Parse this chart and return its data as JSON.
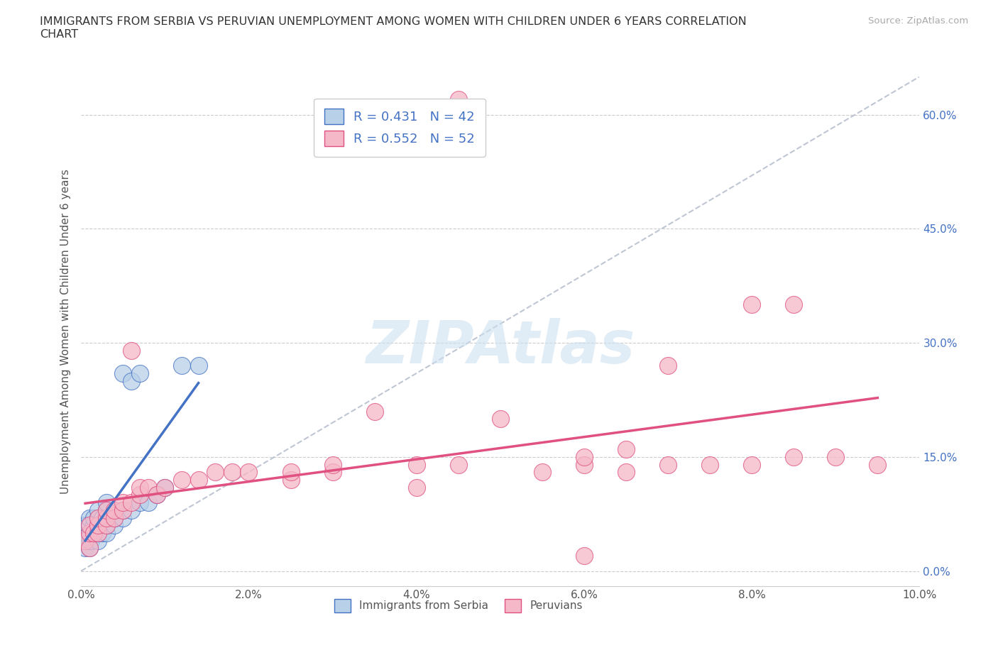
{
  "title": "IMMIGRANTS FROM SERBIA VS PERUVIAN UNEMPLOYMENT AMONG WOMEN WITH CHILDREN UNDER 6 YEARS CORRELATION\nCHART",
  "source": "Source: ZipAtlas.com",
  "xlabel": "",
  "ylabel": "Unemployment Among Women with Children Under 6 years",
  "legend_bottom": [
    "Immigrants from Serbia",
    "Peruvians"
  ],
  "r1": 0.431,
  "n1": 42,
  "r2": 0.552,
  "n2": 52,
  "color_blue": "#b8d0e8",
  "color_pink": "#f5b8c8",
  "color_blue_dark": "#4472c4",
  "color_pink_dark": "#e05080",
  "xlim": [
    0.0,
    0.1
  ],
  "ylim": [
    -0.02,
    0.65
  ],
  "xticks": [
    0.0,
    0.02,
    0.04,
    0.06,
    0.08,
    0.1
  ],
  "yticks": [
    0.0,
    0.15,
    0.3,
    0.45,
    0.6
  ],
  "serbia_x": [
    0.0005,
    0.0005,
    0.0005,
    0.0008,
    0.0008,
    0.001,
    0.001,
    0.001,
    0.001,
    0.001,
    0.0012,
    0.0012,
    0.0015,
    0.0015,
    0.0015,
    0.002,
    0.002,
    0.002,
    0.002,
    0.002,
    0.0025,
    0.0025,
    0.003,
    0.003,
    0.003,
    0.003,
    0.003,
    0.004,
    0.004,
    0.004,
    0.005,
    0.005,
    0.005,
    0.006,
    0.006,
    0.007,
    0.007,
    0.008,
    0.009,
    0.01,
    0.012,
    0.014
  ],
  "serbia_y": [
    0.03,
    0.05,
    0.06,
    0.04,
    0.06,
    0.03,
    0.04,
    0.05,
    0.06,
    0.07,
    0.04,
    0.05,
    0.05,
    0.06,
    0.07,
    0.04,
    0.05,
    0.06,
    0.07,
    0.08,
    0.05,
    0.07,
    0.05,
    0.06,
    0.07,
    0.08,
    0.09,
    0.06,
    0.07,
    0.08,
    0.07,
    0.08,
    0.26,
    0.08,
    0.25,
    0.09,
    0.26,
    0.09,
    0.1,
    0.11,
    0.27,
    0.27
  ],
  "peru_x": [
    0.0005,
    0.001,
    0.001,
    0.001,
    0.0015,
    0.002,
    0.002,
    0.002,
    0.003,
    0.003,
    0.003,
    0.004,
    0.004,
    0.005,
    0.005,
    0.006,
    0.006,
    0.007,
    0.007,
    0.008,
    0.009,
    0.01,
    0.012,
    0.014,
    0.016,
    0.018,
    0.02,
    0.025,
    0.025,
    0.03,
    0.03,
    0.035,
    0.04,
    0.04,
    0.045,
    0.05,
    0.055,
    0.06,
    0.065,
    0.07,
    0.075,
    0.08,
    0.085,
    0.09,
    0.095,
    0.06,
    0.065,
    0.07,
    0.08,
    0.085,
    0.045,
    0.06
  ],
  "peru_y": [
    0.04,
    0.03,
    0.05,
    0.06,
    0.05,
    0.05,
    0.06,
    0.07,
    0.06,
    0.07,
    0.08,
    0.07,
    0.08,
    0.08,
    0.09,
    0.09,
    0.29,
    0.1,
    0.11,
    0.11,
    0.1,
    0.11,
    0.12,
    0.12,
    0.13,
    0.13,
    0.13,
    0.12,
    0.13,
    0.13,
    0.14,
    0.21,
    0.11,
    0.14,
    0.14,
    0.2,
    0.13,
    0.14,
    0.13,
    0.27,
    0.14,
    0.14,
    0.35,
    0.15,
    0.14,
    0.15,
    0.16,
    0.14,
    0.35,
    0.15,
    0.62,
    0.02
  ],
  "watermark": "ZIPAtlas",
  "background_color": "#ffffff",
  "grid_color": "#cccccc"
}
